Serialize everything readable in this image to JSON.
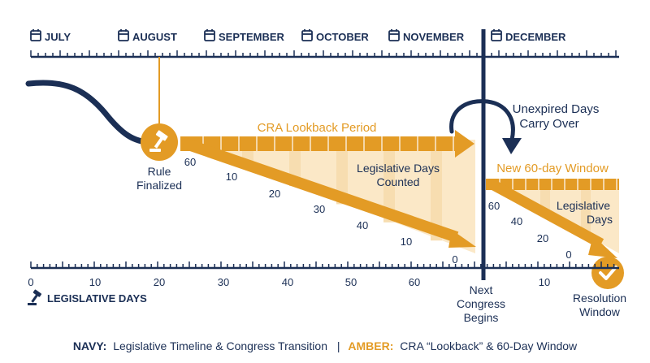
{
  "colors": {
    "navy": "#1b2f55",
    "amber": "#e39b25",
    "amber_light": "#f7ddb0",
    "amber_fill": "#fbe8c7",
    "white": "#ffffff"
  },
  "months": [
    "JULY",
    "AUGUST",
    "SEPTEMBER",
    "OCTOBER",
    "NOVEMBER",
    "DECEMBER"
  ],
  "month_icon": "calendar-icon",
  "legislative_ticks": [
    "0",
    "10",
    "20",
    "30",
    "40",
    "50",
    "60",
    "10"
  ],
  "legislative_days_label": "LEGISLATIVE DAYS",
  "legislative_days_icon": "gavel-icon",
  "rule": {
    "label_line1": "Rule",
    "label_line2": "Finalized",
    "icon": "gavel-icon"
  },
  "lookback": {
    "title": "CRA Lookback Period",
    "start_count": "60",
    "counts": [
      "10",
      "20",
      "30",
      "40",
      "10",
      "0"
    ],
    "inner_line1": "Legislative Days",
    "inner_line2": "Counted"
  },
  "carry_over": {
    "line1": "Unexpired Days",
    "line2": "Carry Over",
    "icon": "curved-arrow-icon"
  },
  "next_congress": {
    "line1": "Next",
    "line2": "Congress",
    "line3": "Begins"
  },
  "new_window": {
    "title": "New 60-day Window",
    "start_count": "60",
    "counts": [
      "40",
      "20",
      "0"
    ],
    "inner_line1": "Legislative",
    "inner_line2": "Days"
  },
  "resolution": {
    "line1": "Resolution",
    "line2": "Window",
    "icon": "checkmark-icon"
  },
  "legend": {
    "navy_key": "NAVY:",
    "navy_text": "Legislative Timeline & Congress Transition",
    "separator": "|",
    "amber_key": "AMBER:",
    "amber_text": "CRA “Lookback” & 60-Day Window"
  }
}
